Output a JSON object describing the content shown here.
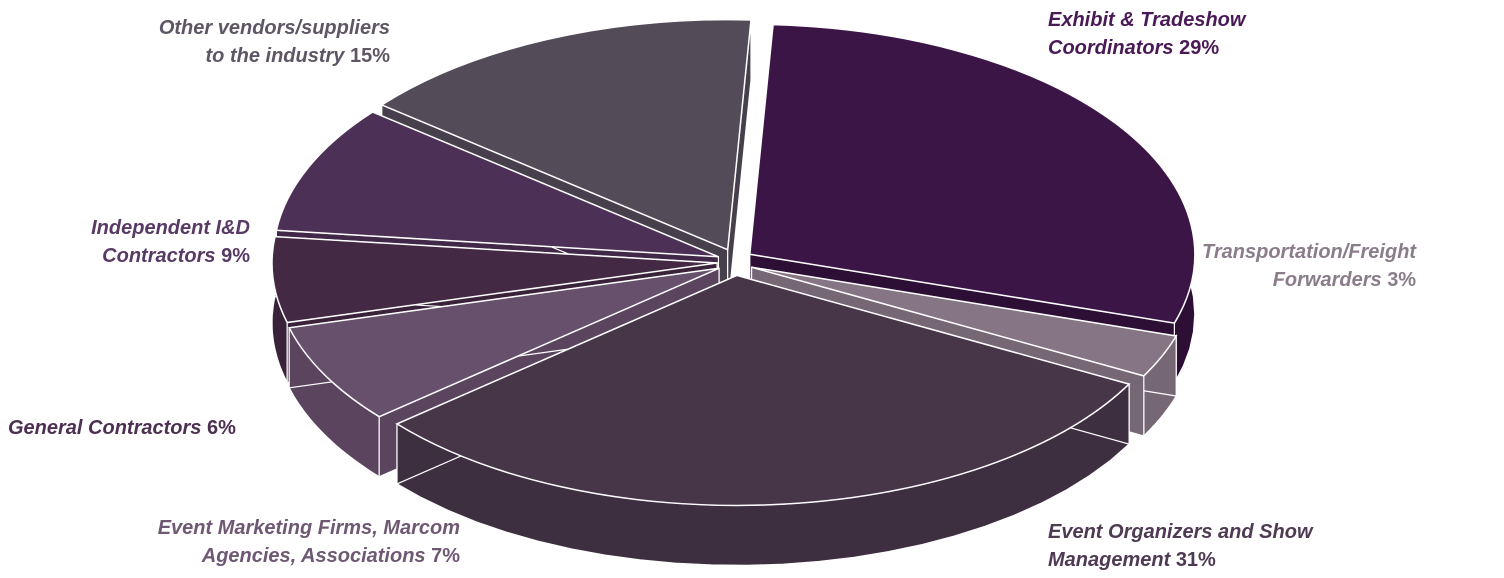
{
  "chart_data": {
    "type": "pie",
    "title": "",
    "slices": [
      {
        "line1": "Exhibit & Tradeshow",
        "line2": "Coordinators",
        "pct": "29%",
        "value": 29,
        "color": "#3b1546",
        "side_color": "#2d0f36",
        "label_color": "#4a1a56"
      },
      {
        "line1": "Transportation/Freight",
        "line2": "Forwarders",
        "pct": "3%",
        "value": 3,
        "color": "#857585",
        "side_color": "#766775",
        "label_color": "#8a7c8b"
      },
      {
        "line1": "Event Organizers and Show",
        "line2": "Management",
        "pct": "31%",
        "value": 31,
        "color": "#463648",
        "side_color": "#3e2f40",
        "label_color": "#4e3a52"
      },
      {
        "line1": "Event Marketing Firms, Marcom",
        "line2": "Agencies, Associations",
        "pct": "7%",
        "value": 7,
        "color": "#67506c",
        "side_color": "#5a445e",
        "label_color": "#6e5873"
      },
      {
        "line1": "General Contractors",
        "line2": "",
        "pct": "6%",
        "value": 6,
        "color": "#432944",
        "side_color": "#3a223b",
        "label_color": "#4d2f52"
      },
      {
        "line1": "Independent I&D",
        "line2": "Contractors",
        "pct": "9%",
        "value": 9,
        "color": "#4c3055",
        "side_color": "#412848",
        "label_color": "#583a64"
      },
      {
        "line1": "Other vendors/suppliers",
        "line2": "to the industry",
        "pct": "15%",
        "value": 15,
        "color": "#534b58",
        "side_color": "#47404c",
        "label_color": "#5e5665"
      }
    ]
  }
}
